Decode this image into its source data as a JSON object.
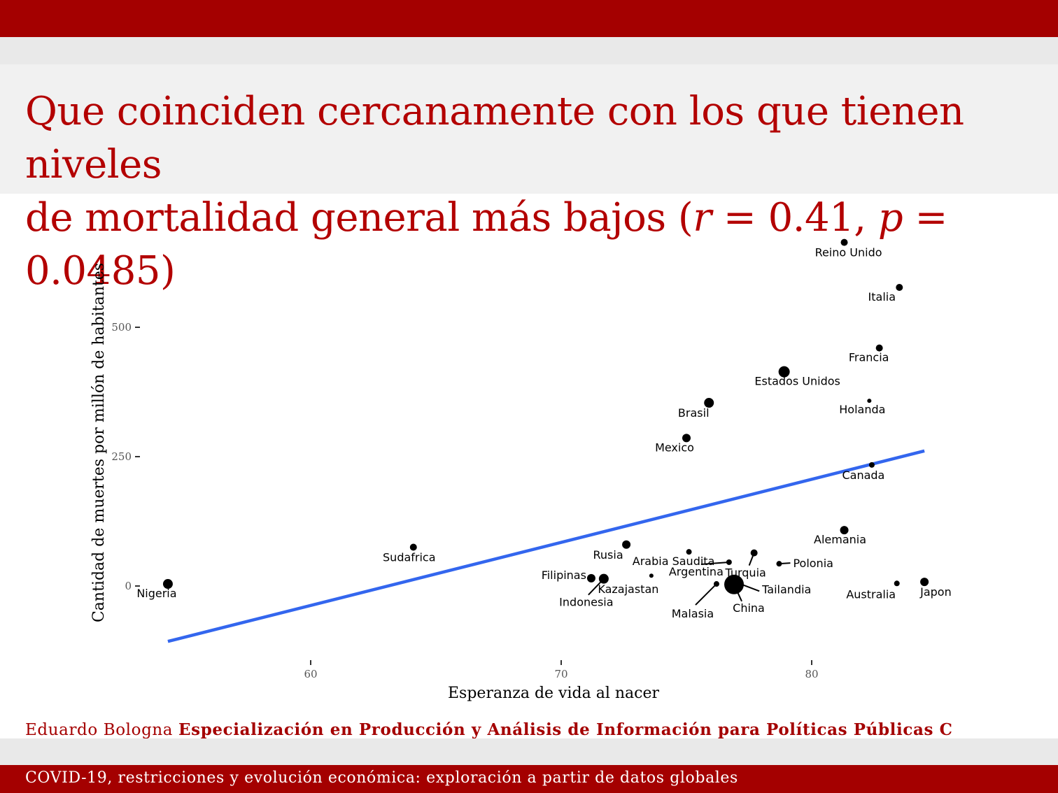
{
  "slide": {
    "title_line1": "Que coinciden cercanamente con los que tienen niveles",
    "title_line2_text": "de mortalidad general más bajos (",
    "title_r": "r",
    "title_r_value": " = 0.41, ",
    "title_p": "p",
    "title_p_value": " = 0.0485)",
    "footer_author": "Eduardo Bologna",
    "footer_program": "Especialización en Producción y Análisis de Información para Políticas Públicas C",
    "footer_subtitle": "COVID-19, restricciones y evolución económica: exploración a partir de datos globales"
  },
  "colors": {
    "brand": "#a40000",
    "title": "#b30000",
    "trend_line": "#3366ee",
    "points": "#000000"
  },
  "chart_data": {
    "type": "scatter",
    "xlabel": "Esperanza de vida al nacer",
    "ylabel": "Cantidad de muertes por millón de habitantes",
    "xlim": [
      52.5,
      86.0
    ],
    "ylim": [
      -140,
      660
    ],
    "x_ticks": [
      60,
      70,
      80
    ],
    "y_ticks": [
      0,
      250,
      500
    ],
    "grid": false,
    "trend_line": {
      "x": [
        54.3,
        84.5
      ],
      "y": [
        -107,
        261
      ]
    },
    "points": [
      {
        "name": "Reino Unido",
        "x": 81.3,
        "y": 664,
        "size": 5
      },
      {
        "name": "Italia",
        "x": 83.5,
        "y": 577,
        "size": 5
      },
      {
        "name": "Francia",
        "x": 82.7,
        "y": 460,
        "size": 5
      },
      {
        "name": "Estados Unidos",
        "x": 78.9,
        "y": 414,
        "size": 8
      },
      {
        "name": "Holanda",
        "x": 82.3,
        "y": 358,
        "size": 3
      },
      {
        "name": "Brasil",
        "x": 75.9,
        "y": 354,
        "size": 7
      },
      {
        "name": "Mexico",
        "x": 75.0,
        "y": 286,
        "size": 6
      },
      {
        "name": "Canada",
        "x": 82.4,
        "y": 234,
        "size": 4
      },
      {
        "name": "Alemania",
        "x": 81.3,
        "y": 108,
        "size": 6
      },
      {
        "name": "Sudafrica",
        "x": 64.1,
        "y": 75,
        "size": 5
      },
      {
        "name": "Rusia",
        "x": 72.6,
        "y": 80,
        "size": 6
      },
      {
        "name": "Arabia Saudita",
        "x": 75.1,
        "y": 66,
        "size": 4
      },
      {
        "name": "Turquia",
        "x": 77.7,
        "y": 64,
        "size": 5
      },
      {
        "name": "Polonia",
        "x": 78.7,
        "y": 43,
        "size": 4
      },
      {
        "name": "Filipinas",
        "x": 71.2,
        "y": 15,
        "size": 6
      },
      {
        "name": "Kazajastan",
        "x": 73.6,
        "y": 20,
        "size": 3
      },
      {
        "name": "Indonesia",
        "x": 71.7,
        "y": 14,
        "size": 7
      },
      {
        "name": "Argentina",
        "x": 76.7,
        "y": 46,
        "size": 4
      },
      {
        "name": "Malasia",
        "x": 76.2,
        "y": 4,
        "size": 4
      },
      {
        "name": "China",
        "x": 76.9,
        "y": 3,
        "size": 14
      },
      {
        "name": "Tailandia",
        "x": 77.1,
        "y": 5,
        "size": 3
      },
      {
        "name": "Australia",
        "x": 83.4,
        "y": 5,
        "size": 4
      },
      {
        "name": "Japon",
        "x": 84.5,
        "y": 8,
        "size": 6
      },
      {
        "name": "Nigeria",
        "x": 54.3,
        "y": 4,
        "size": 7
      }
    ]
  }
}
